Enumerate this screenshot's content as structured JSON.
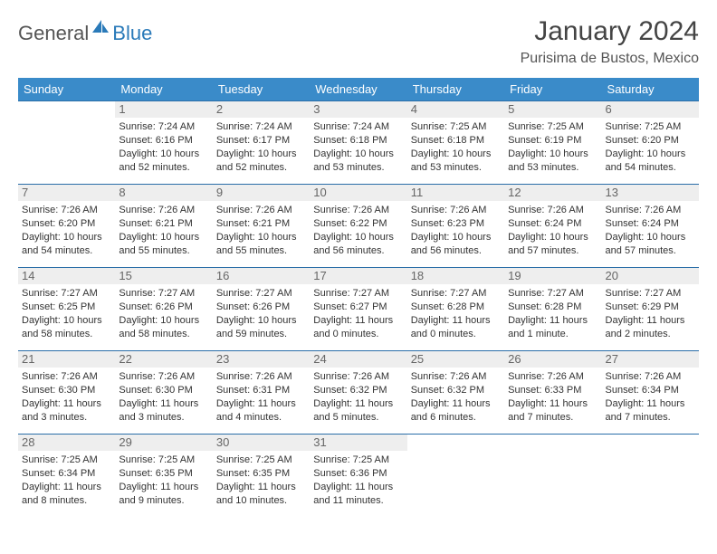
{
  "brand": {
    "part1": "General",
    "part2": "Blue"
  },
  "title": "January 2024",
  "location": "Purisima de Bustos, Mexico",
  "colors": {
    "header_bg": "#3a8bc9",
    "header_text": "#ffffff",
    "row_border": "#2a6ea8",
    "daynum_bg": "#eeeeee",
    "daynum_text": "#666666",
    "body_text": "#333333",
    "brand_blue": "#2a7ab9",
    "brand_gray": "#555555"
  },
  "weekdays": [
    "Sunday",
    "Monday",
    "Tuesday",
    "Wednesday",
    "Thursday",
    "Friday",
    "Saturday"
  ],
  "cells": [
    {
      "day": "",
      "sunrise": "",
      "sunset": "",
      "daylight": ""
    },
    {
      "day": "1",
      "sunrise": "Sunrise: 7:24 AM",
      "sunset": "Sunset: 6:16 PM",
      "daylight": "Daylight: 10 hours and 52 minutes."
    },
    {
      "day": "2",
      "sunrise": "Sunrise: 7:24 AM",
      "sunset": "Sunset: 6:17 PM",
      "daylight": "Daylight: 10 hours and 52 minutes."
    },
    {
      "day": "3",
      "sunrise": "Sunrise: 7:24 AM",
      "sunset": "Sunset: 6:18 PM",
      "daylight": "Daylight: 10 hours and 53 minutes."
    },
    {
      "day": "4",
      "sunrise": "Sunrise: 7:25 AM",
      "sunset": "Sunset: 6:18 PM",
      "daylight": "Daylight: 10 hours and 53 minutes."
    },
    {
      "day": "5",
      "sunrise": "Sunrise: 7:25 AM",
      "sunset": "Sunset: 6:19 PM",
      "daylight": "Daylight: 10 hours and 53 minutes."
    },
    {
      "day": "6",
      "sunrise": "Sunrise: 7:25 AM",
      "sunset": "Sunset: 6:20 PM",
      "daylight": "Daylight: 10 hours and 54 minutes."
    },
    {
      "day": "7",
      "sunrise": "Sunrise: 7:26 AM",
      "sunset": "Sunset: 6:20 PM",
      "daylight": "Daylight: 10 hours and 54 minutes."
    },
    {
      "day": "8",
      "sunrise": "Sunrise: 7:26 AM",
      "sunset": "Sunset: 6:21 PM",
      "daylight": "Daylight: 10 hours and 55 minutes."
    },
    {
      "day": "9",
      "sunrise": "Sunrise: 7:26 AM",
      "sunset": "Sunset: 6:21 PM",
      "daylight": "Daylight: 10 hours and 55 minutes."
    },
    {
      "day": "10",
      "sunrise": "Sunrise: 7:26 AM",
      "sunset": "Sunset: 6:22 PM",
      "daylight": "Daylight: 10 hours and 56 minutes."
    },
    {
      "day": "11",
      "sunrise": "Sunrise: 7:26 AM",
      "sunset": "Sunset: 6:23 PM",
      "daylight": "Daylight: 10 hours and 56 minutes."
    },
    {
      "day": "12",
      "sunrise": "Sunrise: 7:26 AM",
      "sunset": "Sunset: 6:24 PM",
      "daylight": "Daylight: 10 hours and 57 minutes."
    },
    {
      "day": "13",
      "sunrise": "Sunrise: 7:26 AM",
      "sunset": "Sunset: 6:24 PM",
      "daylight": "Daylight: 10 hours and 57 minutes."
    },
    {
      "day": "14",
      "sunrise": "Sunrise: 7:27 AM",
      "sunset": "Sunset: 6:25 PM",
      "daylight": "Daylight: 10 hours and 58 minutes."
    },
    {
      "day": "15",
      "sunrise": "Sunrise: 7:27 AM",
      "sunset": "Sunset: 6:26 PM",
      "daylight": "Daylight: 10 hours and 58 minutes."
    },
    {
      "day": "16",
      "sunrise": "Sunrise: 7:27 AM",
      "sunset": "Sunset: 6:26 PM",
      "daylight": "Daylight: 10 hours and 59 minutes."
    },
    {
      "day": "17",
      "sunrise": "Sunrise: 7:27 AM",
      "sunset": "Sunset: 6:27 PM",
      "daylight": "Daylight: 11 hours and 0 minutes."
    },
    {
      "day": "18",
      "sunrise": "Sunrise: 7:27 AM",
      "sunset": "Sunset: 6:28 PM",
      "daylight": "Daylight: 11 hours and 0 minutes."
    },
    {
      "day": "19",
      "sunrise": "Sunrise: 7:27 AM",
      "sunset": "Sunset: 6:28 PM",
      "daylight": "Daylight: 11 hours and 1 minute."
    },
    {
      "day": "20",
      "sunrise": "Sunrise: 7:27 AM",
      "sunset": "Sunset: 6:29 PM",
      "daylight": "Daylight: 11 hours and 2 minutes."
    },
    {
      "day": "21",
      "sunrise": "Sunrise: 7:26 AM",
      "sunset": "Sunset: 6:30 PM",
      "daylight": "Daylight: 11 hours and 3 minutes."
    },
    {
      "day": "22",
      "sunrise": "Sunrise: 7:26 AM",
      "sunset": "Sunset: 6:30 PM",
      "daylight": "Daylight: 11 hours and 3 minutes."
    },
    {
      "day": "23",
      "sunrise": "Sunrise: 7:26 AM",
      "sunset": "Sunset: 6:31 PM",
      "daylight": "Daylight: 11 hours and 4 minutes."
    },
    {
      "day": "24",
      "sunrise": "Sunrise: 7:26 AM",
      "sunset": "Sunset: 6:32 PM",
      "daylight": "Daylight: 11 hours and 5 minutes."
    },
    {
      "day": "25",
      "sunrise": "Sunrise: 7:26 AM",
      "sunset": "Sunset: 6:32 PM",
      "daylight": "Daylight: 11 hours and 6 minutes."
    },
    {
      "day": "26",
      "sunrise": "Sunrise: 7:26 AM",
      "sunset": "Sunset: 6:33 PM",
      "daylight": "Daylight: 11 hours and 7 minutes."
    },
    {
      "day": "27",
      "sunrise": "Sunrise: 7:26 AM",
      "sunset": "Sunset: 6:34 PM",
      "daylight": "Daylight: 11 hours and 7 minutes."
    },
    {
      "day": "28",
      "sunrise": "Sunrise: 7:25 AM",
      "sunset": "Sunset: 6:34 PM",
      "daylight": "Daylight: 11 hours and 8 minutes."
    },
    {
      "day": "29",
      "sunrise": "Sunrise: 7:25 AM",
      "sunset": "Sunset: 6:35 PM",
      "daylight": "Daylight: 11 hours and 9 minutes."
    },
    {
      "day": "30",
      "sunrise": "Sunrise: 7:25 AM",
      "sunset": "Sunset: 6:35 PM",
      "daylight": "Daylight: 11 hours and 10 minutes."
    },
    {
      "day": "31",
      "sunrise": "Sunrise: 7:25 AM",
      "sunset": "Sunset: 6:36 PM",
      "daylight": "Daylight: 11 hours and 11 minutes."
    },
    {
      "day": "",
      "sunrise": "",
      "sunset": "",
      "daylight": ""
    },
    {
      "day": "",
      "sunrise": "",
      "sunset": "",
      "daylight": ""
    },
    {
      "day": "",
      "sunrise": "",
      "sunset": "",
      "daylight": ""
    }
  ]
}
